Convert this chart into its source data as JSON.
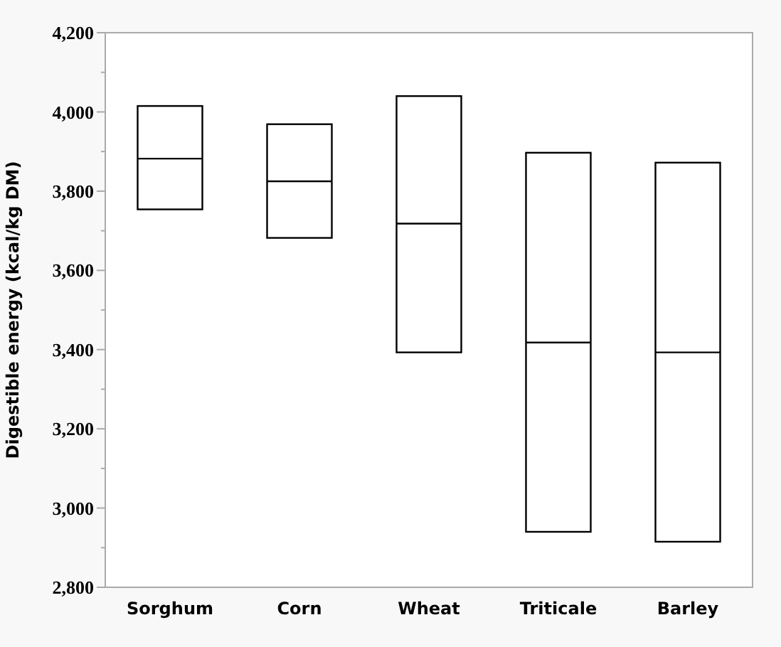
{
  "chart_data": {
    "type": "box",
    "ylabel": "Digestible energy (kcal/kg DM)",
    "categories": [
      "Sorghum",
      "Corn",
      "Wheat",
      "Triticale",
      "Barley"
    ],
    "boxes": [
      {
        "low": 3754,
        "q1": 3754,
        "median": 3882,
        "q3": 4015,
        "high": 4015
      },
      {
        "low": 3682,
        "q1": 3682,
        "median": 3825,
        "q3": 3969,
        "high": 3969
      },
      {
        "low": 3393,
        "q1": 3393,
        "median": 3718,
        "q3": 4040,
        "high": 4040
      },
      {
        "low": 2940,
        "q1": 2940,
        "median": 3418,
        "q3": 3897,
        "high": 3897
      },
      {
        "low": 2915,
        "q1": 2915,
        "median": 3393,
        "q3": 3872,
        "high": 3872
      }
    ],
    "color": "#ffffff",
    "ylim": [
      2800,
      4200
    ],
    "yticks": [
      {
        "value": 2800,
        "label": "2,800"
      },
      {
        "value": 2900,
        "label": null
      },
      {
        "value": 3000,
        "label": "3,000"
      },
      {
        "value": 3100,
        "label": null
      },
      {
        "value": 3200,
        "label": "3,200"
      },
      {
        "value": 3300,
        "label": null
      },
      {
        "value": 3400,
        "label": "3,400"
      },
      {
        "value": 3500,
        "label": null
      },
      {
        "value": 3600,
        "label": "3,600"
      },
      {
        "value": 3700,
        "label": null
      },
      {
        "value": 3800,
        "label": "3,800"
      },
      {
        "value": 3900,
        "label": null
      },
      {
        "value": 4000,
        "label": "4,000"
      },
      {
        "value": 4100,
        "label": null
      },
      {
        "value": 4200,
        "label": "4,200"
      }
    ],
    "grid": false
  }
}
